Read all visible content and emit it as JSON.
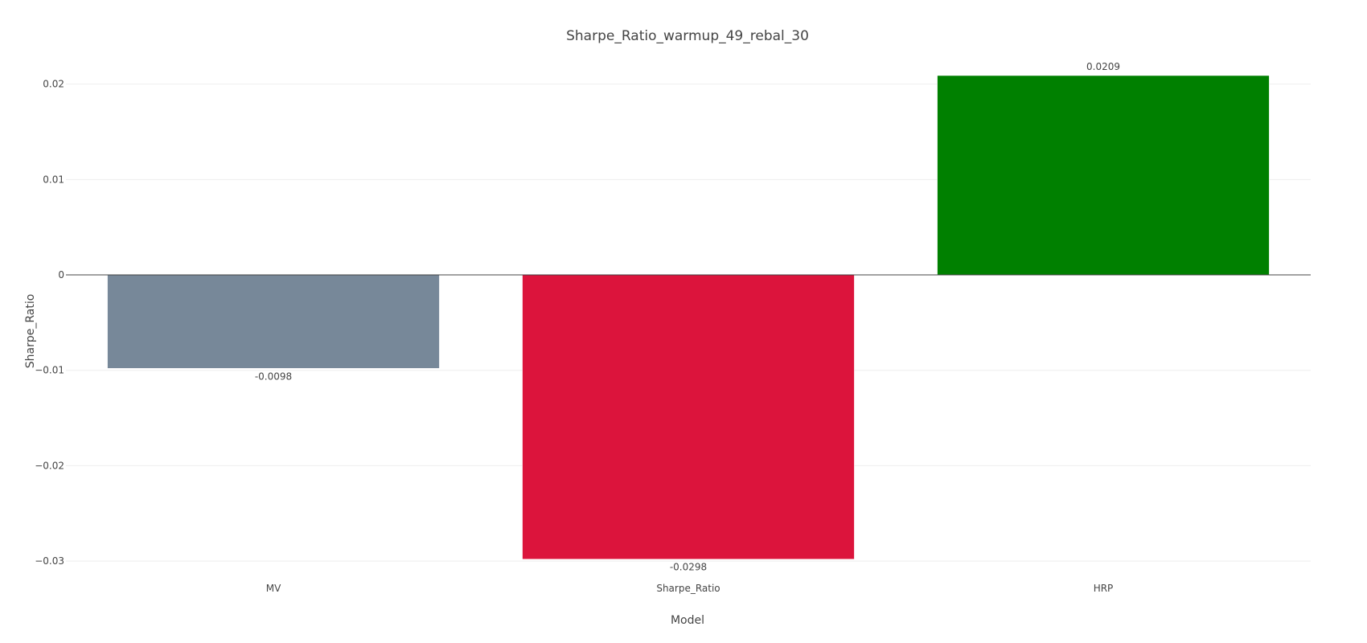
{
  "chart_data": {
    "type": "bar",
    "title": "Sharpe_Ratio_warmup_49_rebal_30",
    "xlabel": "Model",
    "ylabel": "Sharpe_Ratio",
    "categories": [
      "MV",
      "Sharpe_Ratio",
      "HRP"
    ],
    "values": [
      -0.0098,
      -0.0298,
      0.0209
    ],
    "data_labels": [
      "-0.0098",
      "-0.0298",
      "0.0209"
    ],
    "colors": [
      "#778899",
      "#dc143c",
      "#008000"
    ],
    "ylim": [
      -0.0305,
      0.0225
    ],
    "yticks": [
      -0.03,
      -0.02,
      -0.01,
      0,
      0.01,
      0.02
    ],
    "ytick_labels": [
      "−0.03",
      "−0.02",
      "−0.01",
      "0",
      "0.01",
      "0.02"
    ],
    "grid": true,
    "legend": "none",
    "colors_meta": {
      "gridline": "#eeeeee",
      "zeroline": "#444444",
      "text": "#444444",
      "background": "#ffffff"
    }
  }
}
